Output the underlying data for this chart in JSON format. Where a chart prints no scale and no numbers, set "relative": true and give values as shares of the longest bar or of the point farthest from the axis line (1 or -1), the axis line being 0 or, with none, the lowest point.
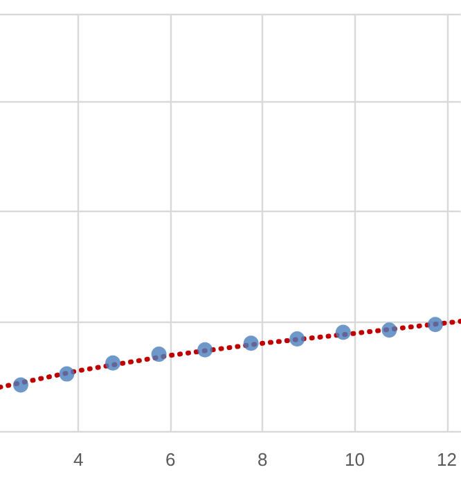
{
  "chart_data": {
    "type": "scatter",
    "relative": true,
    "grid": true,
    "marker": "circle",
    "xlim": [
      2.3,
      12.3
    ],
    "xticks": [
      4,
      6,
      8,
      10,
      12
    ],
    "series": [
      {
        "color": "#4a7ebb",
        "x": [
          2.75,
          3.75,
          4.75,
          5.75,
          6.75,
          7.75,
          8.75,
          9.75,
          10.75,
          11.75
        ],
        "values": [
          0.42,
          0.52,
          0.62,
          0.7,
          0.74,
          0.8,
          0.84,
          0.9,
          0.92,
          0.97
        ]
      },
      {
        "type": "line",
        "color": "#c00000",
        "line_style": "dotted",
        "marker": "none",
        "x": [
          2.3,
          4,
          6,
          8,
          10,
          12.3
        ],
        "values": [
          0.4,
          0.55,
          0.69,
          0.8,
          0.89,
          1
        ]
      }
    ]
  }
}
